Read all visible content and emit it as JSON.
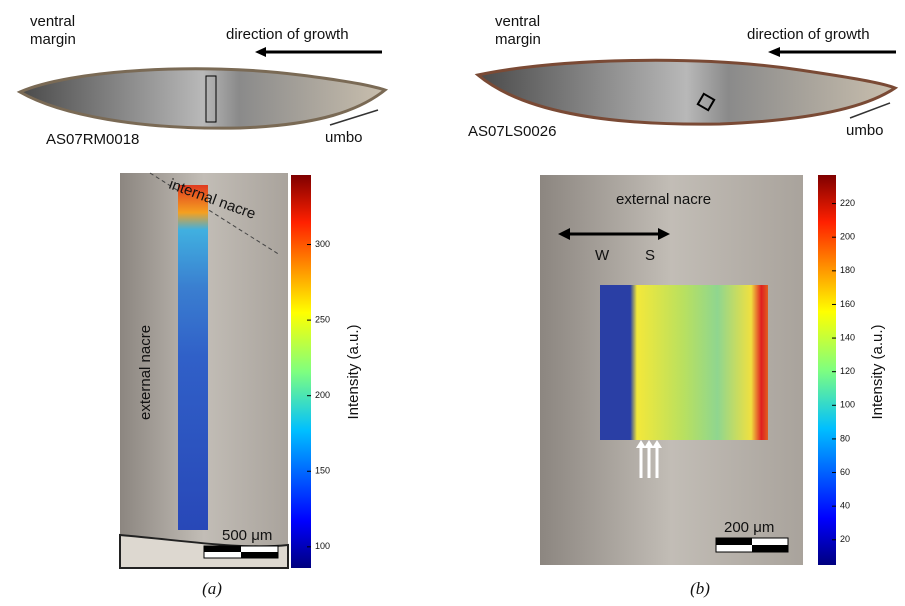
{
  "panels": [
    {
      "margin_label": [
        "ventral",
        "margin"
      ],
      "direction": "direction of growth",
      "specimen": "AS07RM0018",
      "umbo": "umbo",
      "annotations": [
        "internal nacre",
        "external nacre"
      ],
      "scale_bar": "500 μm",
      "colorbar": {
        "label": "Intensity (a.u.)",
        "lim": [
          86,
          346
        ],
        "ticks": [
          100,
          150,
          200,
          250,
          300
        ]
      },
      "caption": "(a)"
    },
    {
      "margin_label": [
        "ventral",
        "margin"
      ],
      "direction": "direction of growth",
      "specimen": "AS07LS0026",
      "umbo": "umbo",
      "annotations": [
        "external nacre",
        "W",
        "S"
      ],
      "scale_bar": "200 μm",
      "colorbar": {
        "label": "Intensity (a.u.)",
        "lim": [
          5,
          237
        ],
        "ticks": [
          20,
          40,
          60,
          80,
          100,
          120,
          140,
          160,
          180,
          200,
          220
        ]
      },
      "caption": "(b)"
    }
  ]
}
